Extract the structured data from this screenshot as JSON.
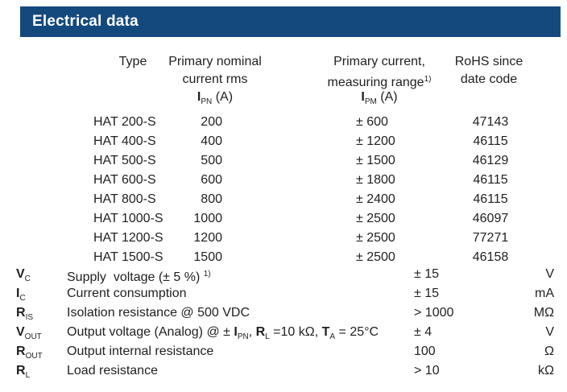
{
  "title_bar": {
    "label": "Electrical data",
    "bg_color": "#14497e",
    "text_color": "#ffffff"
  },
  "table": {
    "headers": {
      "type": "Type",
      "col2_l1": "Primary nominal",
      "col2_l2": "current rms",
      "col2_l3": [
        {
          "t": "I",
          "s": "b"
        },
        {
          "t": "PN",
          "s": "sub"
        },
        {
          "t": " (A)"
        }
      ],
      "col3_l1": "Primary current,",
      "col3_l2": [
        {
          "t": "measuring range"
        },
        {
          "t": "1)",
          "s": "sup"
        }
      ],
      "col3_l3": [
        {
          "t": "I",
          "s": "b"
        },
        {
          "t": "PM",
          "s": "sub"
        },
        {
          "t": " (A)"
        }
      ],
      "col4_l1": "RoHS since",
      "col4_l2": "date code"
    },
    "rows": [
      {
        "type": "HAT 200-S",
        "ipn": "200",
        "ipm": "± 600",
        "rohs": "47143"
      },
      {
        "type": "HAT 400-S",
        "ipn": "400",
        "ipm": "± 1200",
        "rohs": "46115"
      },
      {
        "type": "HAT 500-S",
        "ipn": "500",
        "ipm": "± 1500",
        "rohs": "46129"
      },
      {
        "type": "HAT 600-S",
        "ipn": "600",
        "ipm": "± 1800",
        "rohs": "46115"
      },
      {
        "type": "HAT 800-S",
        "ipn": "800",
        "ipm": "± 2400",
        "rohs": "46115"
      },
      {
        "type": "HAT 1000-S",
        "ipn": "1000",
        "ipm": "± 2500",
        "rohs": "46097"
      },
      {
        "type": "HAT 1200-S",
        "ipn": "1200",
        "ipm": "± 2500",
        "rohs": "77271"
      },
      {
        "type": "HAT 1500-S",
        "ipn": "1500",
        "ipm": "± 2500",
        "rohs": "46158"
      }
    ]
  },
  "specs": {
    "rows": [
      {
        "sym": [
          {
            "t": "V",
            "s": "b"
          },
          {
            "t": "C",
            "s": "sub"
          }
        ],
        "desc": [
          {
            "t": "Supply  voltage (± 5 %) "
          },
          {
            "t": "1)",
            "s": "sup"
          }
        ],
        "value": "± 15",
        "unit": "V"
      },
      {
        "sym": [
          {
            "t": "I",
            "s": "b"
          },
          {
            "t": "C",
            "s": "sub"
          }
        ],
        "desc": [
          {
            "t": "Current consumption"
          }
        ],
        "value": "± 15",
        "unit": "mA"
      },
      {
        "sym": [
          {
            "t": "R",
            "s": "b"
          },
          {
            "t": "IS",
            "s": "sub"
          }
        ],
        "desc": [
          {
            "t": "Isolation resistance @ 500 VDC"
          }
        ],
        "value": "> 1000",
        "unit": "MΩ"
      },
      {
        "sym": [
          {
            "t": "V",
            "s": "b"
          },
          {
            "t": "OUT",
            "s": "sub"
          }
        ],
        "desc": [
          {
            "t": "Output voltage (Analog) @ ± "
          },
          {
            "t": "I",
            "s": "b"
          },
          {
            "t": "PN",
            "s": "sub"
          },
          {
            "t": ", "
          },
          {
            "t": "R",
            "s": "b"
          },
          {
            "t": "L",
            "s": "sub"
          },
          {
            "t": " =10 kΩ, "
          },
          {
            "t": "T",
            "s": "b"
          },
          {
            "t": "A",
            "s": "sub"
          },
          {
            "t": " = 25°C"
          }
        ],
        "value": "± 4",
        "unit": "V"
      },
      {
        "sym": [
          {
            "t": "R",
            "s": "b"
          },
          {
            "t": "OUT",
            "s": "sub"
          }
        ],
        "desc": [
          {
            "t": "Output internal resistance"
          }
        ],
        "value": "100",
        "unit": "Ω"
      },
      {
        "sym": [
          {
            "t": "R",
            "s": "b"
          },
          {
            "t": "L",
            "s": "sub"
          }
        ],
        "desc": [
          {
            "t": "Load resistance"
          }
        ],
        "value": "> 10",
        "unit": "kΩ"
      }
    ]
  }
}
